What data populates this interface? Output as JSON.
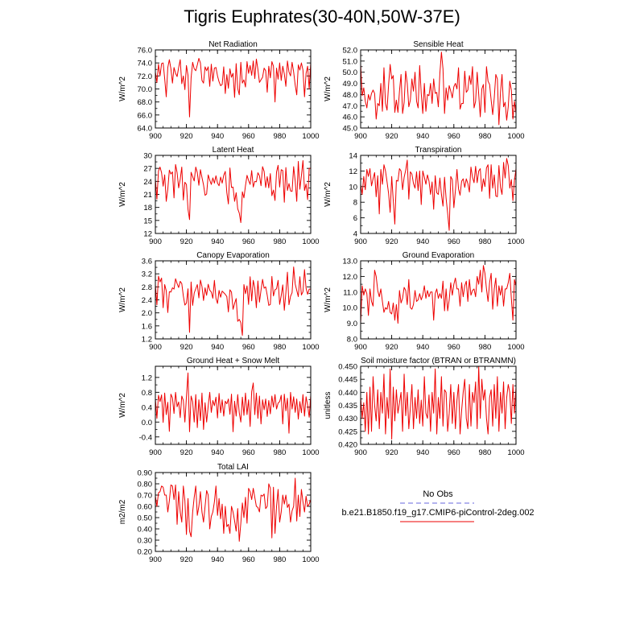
{
  "figure_title": "Tigris Euphrates(30-40N,50W-37E)",
  "legend": {
    "obs_label": "No Obs",
    "obs_color": "#6666dd",
    "model_label": "b.e21.B1850.f19_g17.CMIP6-piControl-2deg.002",
    "model_color": "#ee0000"
  },
  "chart_data": [
    {
      "type": "line",
      "title": "Net Radiation",
      "ylabel": "W/m^2",
      "xlim": [
        900,
        1000
      ],
      "xticks": [
        900,
        920,
        940,
        960,
        980,
        1000
      ],
      "ylim": [
        64,
        76
      ],
      "yticks": [
        64,
        66,
        68,
        70,
        72,
        74,
        76
      ],
      "ytick_labels": [
        "64.0",
        "66.0",
        "68.0",
        "70.0",
        "72.0",
        "74.0",
        "76.0"
      ],
      "x_start": 900,
      "values": [
        72.6,
        71.0,
        73.8,
        72.0,
        73.9,
        74.0,
        71.6,
        68.8,
        73.3,
        74.5,
        73.1,
        70.9,
        73.3,
        72.4,
        71.9,
        73.3,
        74.5,
        70.8,
        72.0,
        69.9,
        73.6,
        72.1,
        65.7,
        71.7,
        74.1,
        73.1,
        72.8,
        73.7,
        74.7,
        74.0,
        71.3,
        70.9,
        73.4,
        72.8,
        73.4,
        70.4,
        73.8,
        71.2,
        73.2,
        73.3,
        72.0,
        71.1,
        70.5,
        70.7,
        73.4,
        69.3,
        72.2,
        70.1,
        73.1,
        71.8,
        72.4,
        68.7,
        73.9,
        70.1,
        69.1,
        74.1,
        70.9,
        71.4,
        70.3,
        74.2,
        72.4,
        73.6,
        72.1,
        74.3,
        71.6,
        74.6,
        73.0,
        71.0,
        71.4,
        71.8,
        73.2,
        72.8,
        69.5,
        73.5,
        71.7,
        74.2,
        73.5,
        68.0,
        73.2,
        71.5,
        74.0,
        71.3,
        73.5,
        72.3,
        70.4,
        74.3,
        72.6,
        72.0,
        74.1,
        72.6,
        70.6,
        69.1,
        73.7,
        72.9,
        74.0,
        72.9,
        68.8,
        72.4,
        73.5,
        70.0,
        74.0
      ]
    },
    {
      "type": "line",
      "title": "Sensible Heat",
      "ylabel": "W/m^2",
      "xlim": [
        900,
        1000
      ],
      "xticks": [
        900,
        920,
        940,
        960,
        980,
        1000
      ],
      "ylim": [
        45,
        52
      ],
      "yticks": [
        45,
        46,
        47,
        48,
        49,
        50,
        51,
        52
      ],
      "ytick_labels": [
        "45.0",
        "46.0",
        "47.0",
        "48.0",
        "49.0",
        "50.0",
        "51.0",
        "52.0"
      ],
      "x_start": 900,
      "values": [
        50.7,
        47.9,
        48.6,
        47.4,
        46.8,
        48.0,
        47.5,
        48.1,
        48.4,
        48.1,
        45.8,
        47.2,
        47.0,
        49.0,
        46.5,
        50.4,
        47.2,
        46.6,
        48.9,
        50.7,
        49.4,
        49.7,
        46.4,
        47.5,
        46.4,
        48.3,
        49.8,
        46.3,
        47.3,
        50.1,
        49.0,
        46.9,
        47.5,
        49.4,
        48.3,
        50.0,
        47.4,
        46.8,
        50.6,
        48.1,
        46.3,
        49.0,
        46.5,
        48.0,
        47.9,
        49.0,
        47.2,
        49.4,
        48.1,
        48.2,
        46.9,
        49.9,
        51.8,
        50.3,
        46.3,
        48.6,
        47.5,
        48.8,
        48.3,
        47.7,
        48.7,
        49.0,
        48.5,
        50.4,
        46.7,
        47.2,
        47.2,
        50.1,
        48.2,
        48.4,
        49.7,
        48.9,
        50.5,
        46.8,
        47.4,
        50.0,
        48.0,
        46.0,
        48.5,
        48.9,
        46.4,
        50.5,
        49.2,
        48.9,
        47.5,
        46.2,
        47.7,
        49.8,
        49.4,
        45.3,
        48.2,
        49.8,
        46.9,
        47.3,
        45.7,
        46.9,
        49.2,
        48.4,
        45.8,
        47.4,
        46.3
      ]
    },
    {
      "type": "line",
      "title": "Latent Heat",
      "ylabel": "W/m^2",
      "xlim": [
        900,
        1000
      ],
      "xticks": [
        900,
        920,
        940,
        960,
        980,
        1000
      ],
      "ylim": [
        12,
        30
      ],
      "yticks": [
        12,
        15,
        18,
        21,
        24,
        27,
        30
      ],
      "ytick_labels": [
        "12",
        "15",
        "18",
        "21",
        "24",
        "27",
        "30"
      ],
      "x_start": 900,
      "values": [
        24.5,
        19.9,
        26.4,
        27.3,
        26.0,
        22.9,
        25.5,
        19.4,
        22.2,
        26.6,
        25.7,
        26.2,
        20.2,
        27.9,
        26.0,
        22.5,
        24.5,
        27.3,
        19.7,
        23.8,
        23.3,
        17.6,
        15.2,
        26.1,
        25.1,
        24.1,
        27.3,
        26.0,
        23.1,
        26.7,
        24.9,
        23.2,
        20.8,
        21.1,
        25.5,
        24.3,
        23.3,
        24.8,
        23.6,
        25.3,
        23.6,
        23.0,
        25.0,
        23.6,
        25.4,
        26.3,
        21.4,
        18.8,
        27.1,
        22.6,
        22.7,
        19.4,
        21.4,
        17.7,
        16.7,
        14.5,
        21.6,
        20.2,
        23.0,
        25.4,
        24.2,
        23.3,
        26.5,
        22.7,
        24.0,
        23.9,
        26.0,
        25.3,
        23.0,
        27.4,
        26.3,
        22.6,
        25.1,
        22.5,
        25.8,
        20.7,
        22.0,
        19.6,
        26.2,
        27.7,
        22.7,
        26.7,
        26.5,
        19.2,
        27.2,
        21.9,
        23.5,
        21.8,
        21.7,
        27.4,
        24.1,
        19.4,
        28.6,
        22.2,
        25.3,
        28.8,
        21.9,
        23.4,
        19.8,
        27.0,
        27.0
      ]
    },
    {
      "type": "line",
      "title": "Transpiration",
      "ylabel": "W/m^2",
      "xlim": [
        900,
        1000
      ],
      "xticks": [
        900,
        920,
        940,
        960,
        980,
        1000
      ],
      "ylim": [
        4,
        14
      ],
      "yticks": [
        4,
        6,
        8,
        10,
        12,
        14
      ],
      "ytick_labels": [
        "4",
        "6",
        "8",
        "10",
        "12",
        "14"
      ],
      "x_start": 900,
      "values": [
        10.3,
        9.0,
        11.3,
        9.6,
        12.2,
        11.3,
        12.3,
        10.1,
        11.0,
        11.8,
        8.7,
        11.4,
        6.5,
        12.2,
        10.3,
        12.8,
        12.0,
        10.6,
        9.1,
        6.7,
        11.3,
        8.2,
        5.2,
        10.8,
        10.7,
        12.3,
        12.0,
        9.6,
        11.2,
        12.1,
        13.4,
        8.4,
        11.9,
        11.6,
        10.4,
        9.8,
        11.9,
        9.5,
        12.0,
        7.7,
        12.0,
        11.2,
        10.3,
        11.5,
        10.7,
        9.0,
        10.6,
        7.1,
        11.4,
        9.2,
        9.0,
        11.1,
        9.0,
        7.5,
        11.2,
        8.5,
        6.6,
        4.4,
        11.3,
        10.9,
        7.3,
        9.5,
        12.2,
        9.7,
        8.9,
        10.7,
        11.0,
        9.9,
        11.0,
        10.4,
        9.3,
        12.5,
        11.2,
        10.5,
        12.6,
        10.5,
        12.0,
        12.3,
        9.4,
        11.0,
        10.0,
        12.4,
        12.8,
        8.5,
        12.8,
        9.8,
        11.5,
        8.8,
        8.7,
        12.7,
        9.9,
        9.0,
        13.1,
        11.1,
        13.6,
        12.7,
        9.8,
        10.9,
        8.2,
        10.8,
        12.3
      ]
    },
    {
      "type": "line",
      "title": "Canopy Evaporation",
      "ylabel": "W/m^2",
      "xlim": [
        900,
        1000
      ],
      "xticks": [
        900,
        920,
        940,
        960,
        980,
        1000
      ],
      "ylim": [
        1.2,
        3.6
      ],
      "yticks": [
        1.2,
        1.6,
        2.0,
        2.4,
        2.8,
        3.2,
        3.6
      ],
      "ytick_labels": [
        "1.2",
        "1.6",
        "2.0",
        "2.4",
        "2.8",
        "3.2",
        "3.6"
      ],
      "x_start": 900,
      "values": [
        2.86,
        2.25,
        3.13,
        2.95,
        3.07,
        2.16,
        2.87,
        2.68,
        2.01,
        2.65,
        2.64,
        2.77,
        2.73,
        3.05,
        2.9,
        2.78,
        2.97,
        2.9,
        2.52,
        2.24,
        2.3,
        2.74,
        1.4,
        2.95,
        2.23,
        2.61,
        2.74,
        2.87,
        2.46,
        3.01,
        2.81,
        2.38,
        2.77,
        2.54,
        2.88,
        2.7,
        2.64,
        2.45,
        3.0,
        2.45,
        2.29,
        2.69,
        2.48,
        2.67,
        2.62,
        2.57,
        2.5,
        2.03,
        2.71,
        2.64,
        2.11,
        2.29,
        2.44,
        1.74,
        1.8,
        1.7,
        1.31,
        2.87,
        2.59,
        2.83,
        2.26,
        3.11,
        2.37,
        3.0,
        2.76,
        2.16,
        2.98,
        2.33,
        2.7,
        3.03,
        2.76,
        2.8,
        2.54,
        2.23,
        2.26,
        3.12,
        2.52,
        2.71,
        2.74,
        3.0,
        2.26,
        2.53,
        2.86,
        2.08,
        2.62,
        3.25,
        2.25,
        2.51,
        2.62,
        3.41,
        2.89,
        2.69,
        2.5,
        3.11,
        2.55,
        2.65,
        3.33,
        2.76,
        2.57,
        2.73,
        2.73
      ]
    },
    {
      "type": "line",
      "title": "Ground Evaporation",
      "ylabel": "W/m^2",
      "xlim": [
        900,
        1000
      ],
      "xticks": [
        900,
        920,
        940,
        960,
        980,
        1000
      ],
      "ylim": [
        8,
        13
      ],
      "yticks": [
        8,
        9,
        10,
        11,
        12,
        13
      ],
      "ytick_labels": [
        "8.0",
        "9.0",
        "10.0",
        "11.0",
        "12.0",
        "13.0"
      ],
      "x_start": 900,
      "values": [
        9.0,
        11.4,
        10.8,
        11.2,
        10.9,
        9.5,
        11.2,
        10.4,
        10.1,
        12.4,
        12.0,
        11.1,
        10.7,
        11.2,
        10.4,
        9.7,
        10.0,
        9.9,
        10.4,
        9.7,
        9.6,
        10.3,
        9.2,
        10.2,
        9.0,
        11.1,
        10.3,
        10.6,
        11.3,
        11.1,
        10.2,
        11.8,
        10.0,
        9.9,
        10.2,
        11.1,
        10.4,
        10.5,
        10.9,
        10.5,
        10.8,
        11.4,
        10.6,
        11.1,
        10.7,
        11.0,
        11.0,
        9.2,
        10.9,
        11.2,
        10.6,
        10.9,
        10.6,
        11.7,
        9.8,
        11.2,
        9.8,
        10.5,
        11.6,
        10.8,
        11.5,
        11.9,
        11.2,
        11.2,
        10.1,
        11.6,
        10.7,
        11.4,
        11.7,
        10.4,
        11.8,
        10.8,
        11.1,
        11.2,
        10.7,
        12.0,
        11.5,
        12.4,
        11.0,
        12.7,
        12.2,
        11.2,
        10.4,
        11.6,
        12.2,
        9.9,
        11.2,
        11.9,
        10.1,
        11.4,
        10.8,
        11.4,
        10.1,
        11.2,
        11.2,
        11.6,
        12.2,
        10.6,
        9.2,
        11.8,
        11.4
      ]
    },
    {
      "type": "line",
      "title": "Ground Heat + Snow Melt",
      "ylabel": "W/m^2",
      "xlim": [
        900,
        1000
      ],
      "xticks": [
        900,
        920,
        940,
        960,
        980,
        1000
      ],
      "ylim": [
        -0.6,
        1.5
      ],
      "yticks": [
        -0.4,
        0.0,
        0.4,
        0.8,
        1.2
      ],
      "ytick_labels": [
        "-0.4",
        "0.0",
        "0.4",
        "0.8",
        "1.2"
      ],
      "x_start": 900,
      "values": [
        0.62,
        0.1,
        0.72,
        0.55,
        0.73,
        -0.01,
        0.78,
        0.2,
        0.53,
        -0.25,
        0.75,
        0.65,
        0.23,
        0.8,
        0.41,
        0.54,
        0.12,
        0.7,
        0.58,
        0.0,
        0.68,
        1.32,
        -0.26,
        0.7,
        0.55,
        0.0,
        0.74,
        -0.15,
        0.6,
        0.04,
        0.78,
        -0.2,
        0.52,
        0.0,
        0.43,
        0.8,
        0.26,
        0.58,
        0.44,
        0.67,
        0.11,
        0.77,
        0.25,
        0.6,
        0.16,
        0.56,
        0.49,
        0.62,
        0.21,
        0.75,
        -0.26,
        0.56,
        0.16,
        0.74,
        0.25,
        0.0,
        0.67,
        0.18,
        0.78,
        0.2,
        0.6,
        -0.12,
        0.82,
        1.05,
        0.2,
        0.78,
        0.1,
        0.7,
        -0.05,
        0.6,
        0.33,
        0.62,
        0.15,
        0.58,
        0.22,
        0.7,
        0.4,
        0.74,
        0.35,
        0.51,
        0.55,
        0.72,
        -0.05,
        0.75,
        0.3,
        0.64,
        -0.3,
        0.8,
        0.35,
        0.68,
        0.26,
        0.62,
        0.08,
        0.55,
        0.25,
        0.74,
        0.16,
        0.68,
        0.45,
        0.13,
        0.72
      ]
    },
    {
      "type": "line",
      "title": "Soil moisture factor (BTRAN or BTRANMN)",
      "ylabel": "unitless",
      "xlim": [
        900,
        1000
      ],
      "xticks": [
        900,
        920,
        940,
        960,
        980,
        1000
      ],
      "ylim": [
        0.42,
        0.45
      ],
      "yticks": [
        0.42,
        0.425,
        0.43,
        0.435,
        0.44,
        0.445,
        0.45
      ],
      "ytick_labels": [
        "0.420",
        "0.425",
        "0.430",
        "0.435",
        "0.440",
        "0.445",
        "0.450"
      ],
      "x_start": 900,
      "values": [
        0.438,
        0.43,
        0.436,
        0.425,
        0.44,
        0.424,
        0.442,
        0.425,
        0.446,
        0.435,
        0.429,
        0.441,
        0.426,
        0.44,
        0.432,
        0.447,
        0.424,
        0.438,
        0.43,
        0.449,
        0.422,
        0.442,
        0.429,
        0.441,
        0.432,
        0.436,
        0.44,
        0.425,
        0.447,
        0.431,
        0.44,
        0.426,
        0.434,
        0.443,
        0.426,
        0.438,
        0.43,
        0.441,
        0.428,
        0.437,
        0.427,
        0.446,
        0.432,
        0.43,
        0.439,
        0.425,
        0.44,
        0.432,
        0.449,
        0.424,
        0.438,
        0.43,
        0.446,
        0.427,
        0.441,
        0.44,
        0.425,
        0.432,
        0.443,
        0.428,
        0.44,
        0.426,
        0.437,
        0.443,
        0.424,
        0.433,
        0.44,
        0.445,
        0.43,
        0.426,
        0.443,
        0.427,
        0.44,
        0.436,
        0.444,
        0.426,
        0.45,
        0.43,
        0.445,
        0.437,
        0.441,
        0.43,
        0.424,
        0.438,
        0.441,
        0.427,
        0.443,
        0.43,
        0.446,
        0.425,
        0.44,
        0.432,
        0.444,
        0.426,
        0.438,
        0.443,
        0.44,
        0.428,
        0.443,
        0.432,
        0.442
      ]
    },
    {
      "type": "line",
      "title": "Total LAI",
      "ylabel": "m2/m2",
      "xlim": [
        900,
        1000
      ],
      "xticks": [
        900,
        920,
        940,
        960,
        980,
        1000
      ],
      "ylim": [
        0.2,
        0.9
      ],
      "yticks": [
        0.2,
        0.3,
        0.4,
        0.5,
        0.6,
        0.7,
        0.8,
        0.9
      ],
      "ytick_labels": [
        "0.20",
        "0.30",
        "0.40",
        "0.50",
        "0.60",
        "0.70",
        "0.80",
        "0.90"
      ],
      "x_start": 900,
      "values": [
        0.69,
        0.6,
        0.72,
        0.73,
        0.78,
        0.77,
        0.7,
        0.7,
        0.55,
        0.65,
        0.79,
        0.78,
        0.66,
        0.79,
        0.44,
        0.73,
        0.55,
        0.46,
        0.78,
        0.65,
        0.35,
        0.67,
        0.38,
        0.33,
        0.55,
        0.68,
        0.78,
        0.52,
        0.6,
        0.73,
        0.55,
        0.46,
        0.6,
        0.74,
        0.7,
        0.4,
        0.51,
        0.55,
        0.64,
        0.78,
        0.52,
        0.67,
        0.49,
        0.62,
        0.36,
        0.6,
        0.42,
        0.44,
        0.36,
        0.6,
        0.55,
        0.47,
        0.38,
        0.58,
        0.29,
        0.45,
        0.63,
        0.5,
        0.68,
        0.45,
        0.76,
        0.73,
        0.66,
        0.76,
        0.68,
        0.6,
        0.59,
        0.55,
        0.7,
        0.69,
        0.71,
        0.58,
        0.6,
        0.8,
        0.76,
        0.32,
        0.77,
        0.36,
        0.6,
        0.75,
        0.46,
        0.55,
        0.7,
        0.62,
        0.7,
        0.59,
        0.62,
        0.46,
        0.56,
        0.6,
        0.85,
        0.47,
        0.7,
        0.51,
        0.75,
        0.64,
        0.55,
        0.69,
        0.6,
        0.62,
        0.66
      ]
    }
  ]
}
